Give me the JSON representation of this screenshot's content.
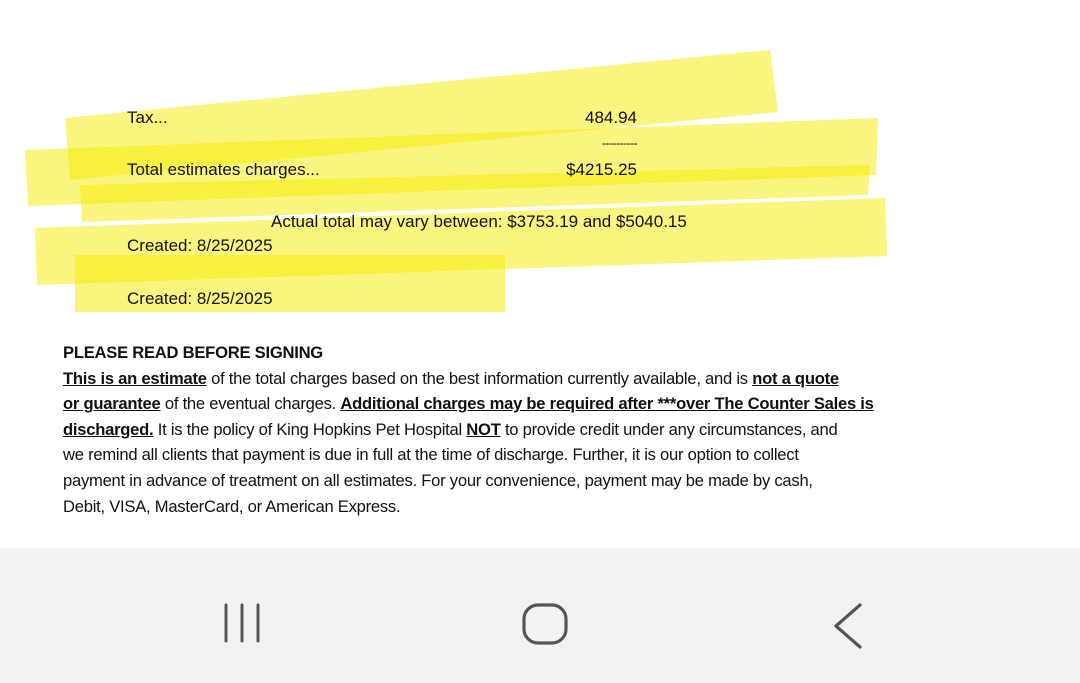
{
  "summary": {
    "tax_label": "Tax...",
    "tax_value": "484.94",
    "divider": "----------",
    "total_label": "Total estimates charges...",
    "total_value": "$4215.25",
    "range_note": "Actual total may vary between: $3753.19 and $5040.15",
    "created_1": "Created:  8/25/2025",
    "created_2": "Created:  8/25/2025"
  },
  "highlight_color": "#f5ec00",
  "notice": {
    "heading": "PLEASE READ BEFORE SIGNING",
    "lines": [
      [
        {
          "text": "This is an estimate",
          "bu": true
        },
        {
          "text": " of the total charges based on the best information currently available, and is "
        },
        {
          "text": "not a quote",
          "bu": true
        }
      ],
      [
        {
          "text": "or guarantee",
          "bu": true
        },
        {
          "text": " of the eventual charges. "
        },
        {
          "text": "Additional charges may be required after ***over The Counter Sales is",
          "bu": true
        }
      ],
      [
        {
          "text": "discharged.",
          "bu": true
        },
        {
          "text": " It is the policy of King Hopkins Pet Hospital "
        },
        {
          "text": "NOT",
          "bu": true
        },
        {
          "text": " to provide credit under any circumstances, and"
        }
      ],
      [
        {
          "text": "we remind all clients that payment is due in full at the time of discharge. Further, it is our option to collect"
        }
      ],
      [
        {
          "text": "payment in advance of treatment on all estimates. For your convenience, payment may be made by cash,"
        }
      ],
      [
        {
          "text": "Debit, VISA, MasterCard, or American Express."
        }
      ]
    ]
  },
  "navbar": {
    "icons": [
      "recent-apps-icon",
      "home-icon",
      "back-icon"
    ]
  }
}
